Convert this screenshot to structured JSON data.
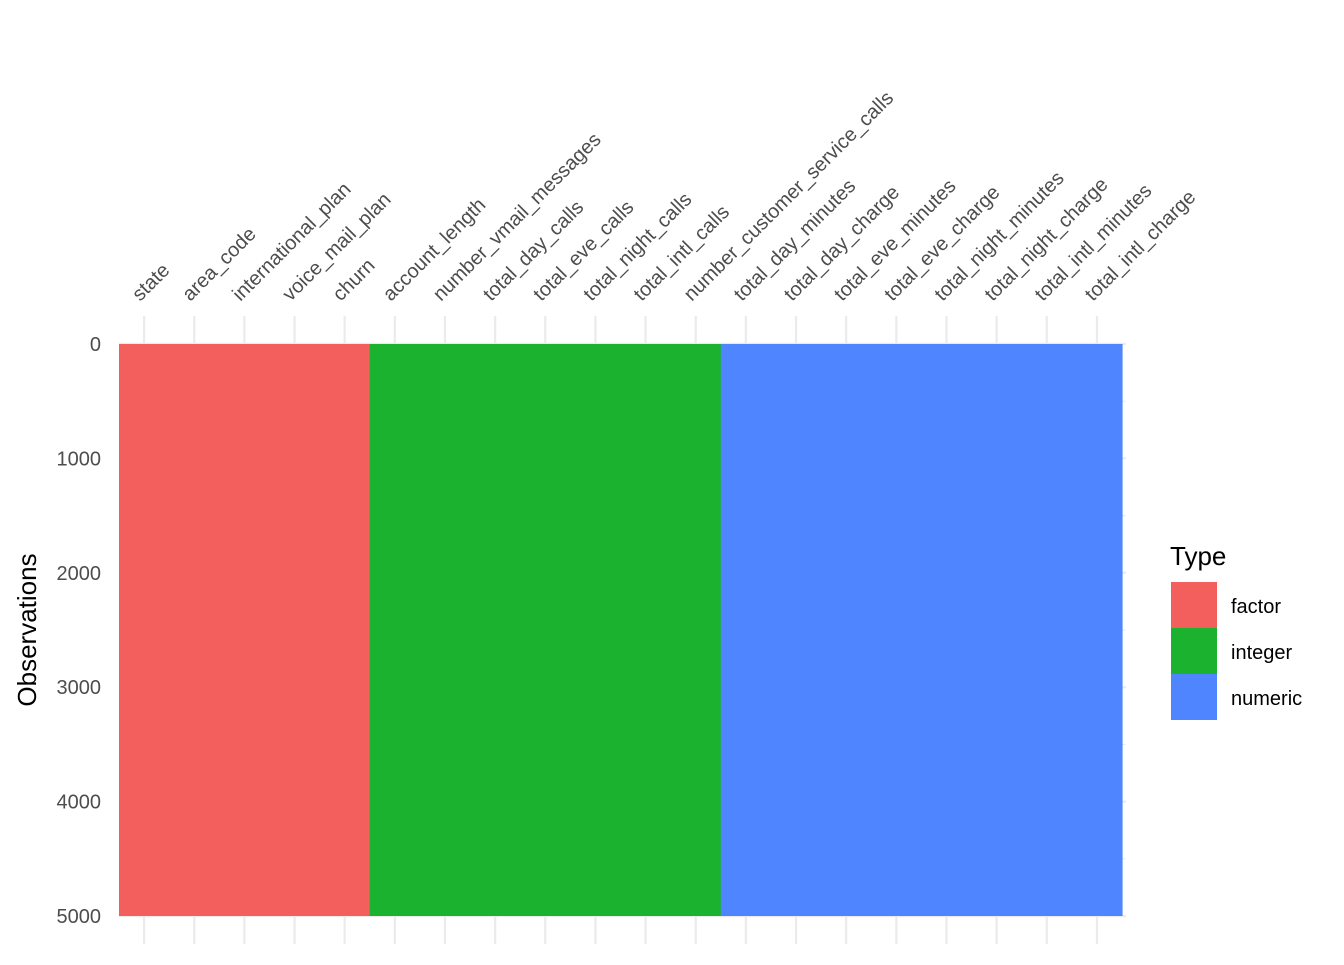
{
  "chart_data": {
    "type": "heatmap",
    "title": "",
    "xlabel": "",
    "ylabel": "Observations",
    "ylim": [
      0,
      5000
    ],
    "y_ticks": [
      "0",
      "1000",
      "2000",
      "3000",
      "4000",
      "5000"
    ],
    "y_tick_values": [
      0,
      1000,
      2000,
      3000,
      4000,
      5000
    ],
    "y_reversed": true,
    "x_axis_position": "top",
    "variables": [
      {
        "name": "state",
        "type": "factor"
      },
      {
        "name": "area_code",
        "type": "factor"
      },
      {
        "name": "international_plan",
        "type": "factor"
      },
      {
        "name": "voice_mail_plan",
        "type": "factor"
      },
      {
        "name": "churn",
        "type": "factor"
      },
      {
        "name": "account_length",
        "type": "integer"
      },
      {
        "name": "number_vmail_messages",
        "type": "integer"
      },
      {
        "name": "total_day_calls",
        "type": "integer"
      },
      {
        "name": "total_eve_calls",
        "type": "integer"
      },
      {
        "name": "total_night_calls",
        "type": "integer"
      },
      {
        "name": "total_intl_calls",
        "type": "integer"
      },
      {
        "name": "number_customer_service_calls",
        "type": "integer"
      },
      {
        "name": "total_day_minutes",
        "type": "numeric"
      },
      {
        "name": "total_day_charge",
        "type": "numeric"
      },
      {
        "name": "total_eve_minutes",
        "type": "numeric"
      },
      {
        "name": "total_eve_charge",
        "type": "numeric"
      },
      {
        "name": "total_night_minutes",
        "type": "numeric"
      },
      {
        "name": "total_night_charge",
        "type": "numeric"
      },
      {
        "name": "total_intl_minutes",
        "type": "numeric"
      },
      {
        "name": "total_intl_charge",
        "type": "numeric"
      }
    ],
    "observations": 5000,
    "legend": {
      "title": "Type",
      "position": "right",
      "entries": [
        {
          "label": "factor",
          "color": "#F25F5C"
        },
        {
          "label": "integer",
          "color": "#1AB22F"
        },
        {
          "label": "numeric",
          "color": "#4F86FF"
        }
      ]
    },
    "grid": true
  }
}
